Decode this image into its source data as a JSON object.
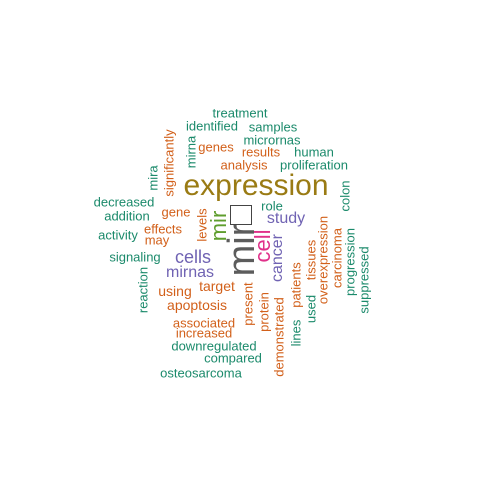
{
  "words": {
    "expression": "expression",
    "mir": "mir",
    "mir2": "mir",
    "cell": "cell",
    "cells": "cells",
    "mirnas": "mirnas",
    "cancer": "cancer",
    "study": "study",
    "treatment": "treatment",
    "identified": "identified",
    "samples": "samples",
    "micrornas": "micrornas",
    "genes": "genes",
    "results": "results",
    "human": "human",
    "analysis": "analysis",
    "proliferation": "proliferation",
    "significantly": "significantly",
    "mirna": "mirna",
    "mira": "mira",
    "decreased": "decreased",
    "addition": "addition",
    "activity": "activity",
    "gene": "gene",
    "effects": "effects",
    "may": "may",
    "levels": "levels",
    "role": "role",
    "colon": "colon",
    "signaling": "signaling",
    "reaction": "reaction",
    "target": "target",
    "using": "using",
    "apoptosis": "apoptosis",
    "associated": "associated",
    "increased": "increased",
    "downregulated": "downregulated",
    "compared": "compared",
    "osteosarcoma": "osteosarcoma",
    "present": "present",
    "protein": "protein",
    "demonstrated": "demonstrated",
    "patients": "patients",
    "tissues": "tissues",
    "lines": "lines",
    "used": "used",
    "overexpression": "overexpression",
    "carcinoma": "carcinoma",
    "progression": "progression",
    "suppressed": "suppressed"
  },
  "colors": {
    "green": "#1b8a6b",
    "orange": "#d2601a",
    "purple": "#7063b3",
    "magenta": "#e0318a",
    "olive": "#9a7b14",
    "gray": "#5c5c5c",
    "lime": "#5f9e2e"
  }
}
